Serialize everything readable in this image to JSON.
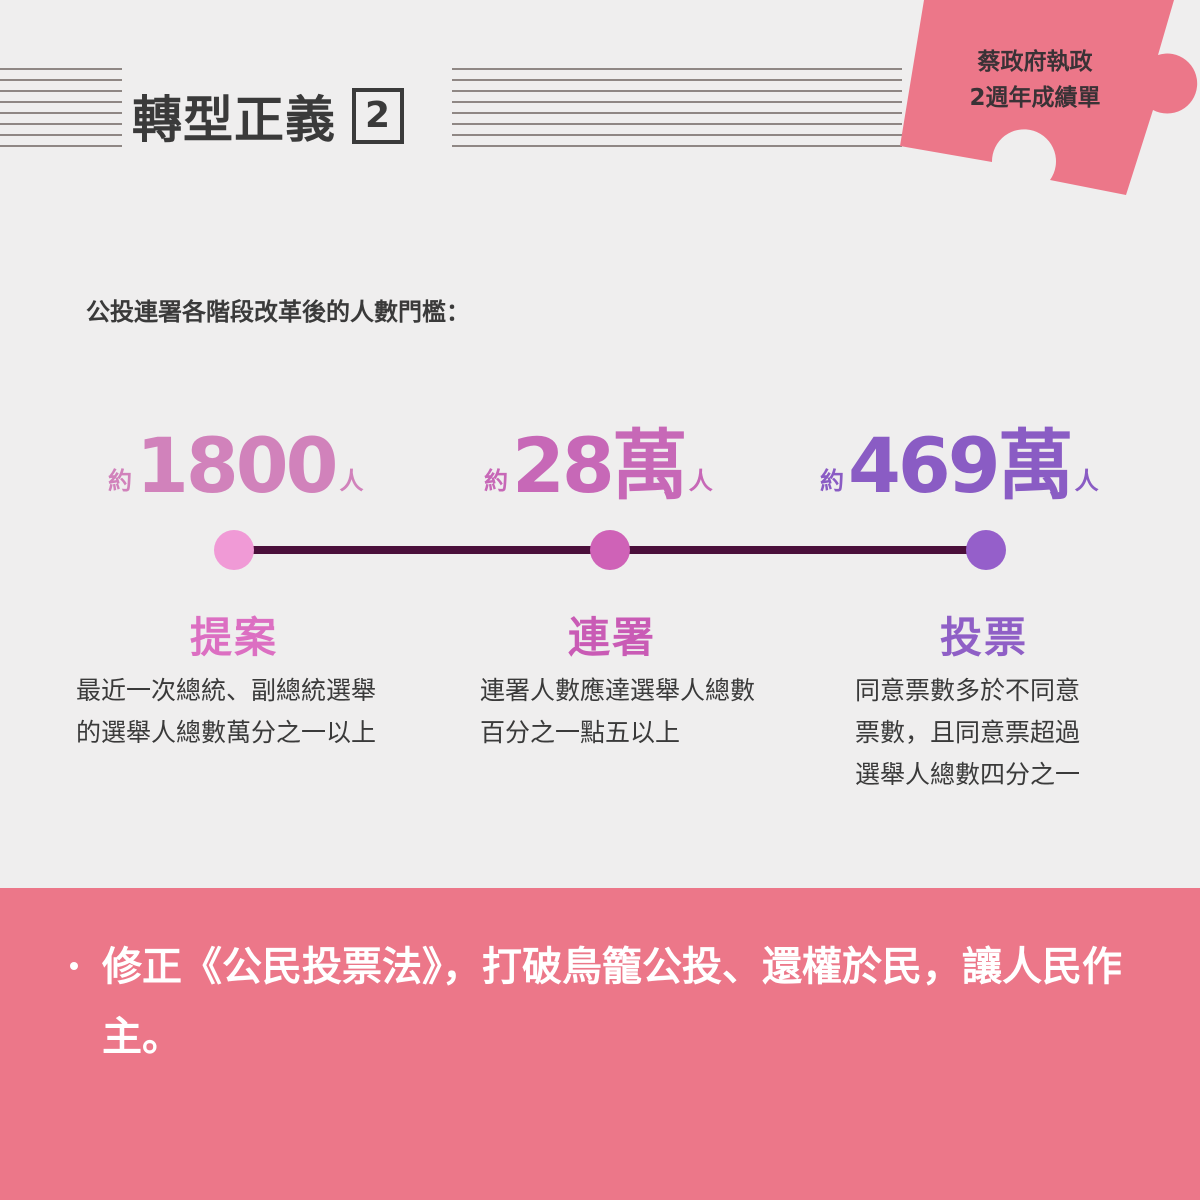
{
  "header": {
    "title": "轉型正義",
    "title_number": "2",
    "badge_line1": "蔡政府執政",
    "badge_line2": "2週年成績單"
  },
  "colors": {
    "background": "#efeeee",
    "puzzle": "#ec7789",
    "footer": "#ec7789",
    "line": "#4a0f3a",
    "stage1": "#f09ad6",
    "stage2": "#cf62b7",
    "stage3": "#955fca"
  },
  "subtitle": "公投連署各階段改革後的人數門檻：",
  "stages": [
    {
      "prefix": "約",
      "number": "1800",
      "suffix": "人",
      "name": "提案",
      "desc_line1": "最近一次總統、副總統選舉",
      "desc_line2": "的選舉人總數萬分之一以上"
    },
    {
      "prefix": "約",
      "number": "28萬",
      "suffix": "人",
      "name": "連署",
      "desc_line1": "連署人數應達選舉人總數",
      "desc_line2": "百分之一點五以上"
    },
    {
      "prefix": "約",
      "number": "469萬",
      "suffix": "人",
      "name": "投票",
      "desc_line1": "同意票數多於不同意",
      "desc_line2": "票數，且同意票超過",
      "desc_line3": "選舉人總數四分之一"
    }
  ],
  "footer": {
    "text": "修正《公民投票法》，打破鳥籠公投、還權於民，讓人民作主。"
  }
}
